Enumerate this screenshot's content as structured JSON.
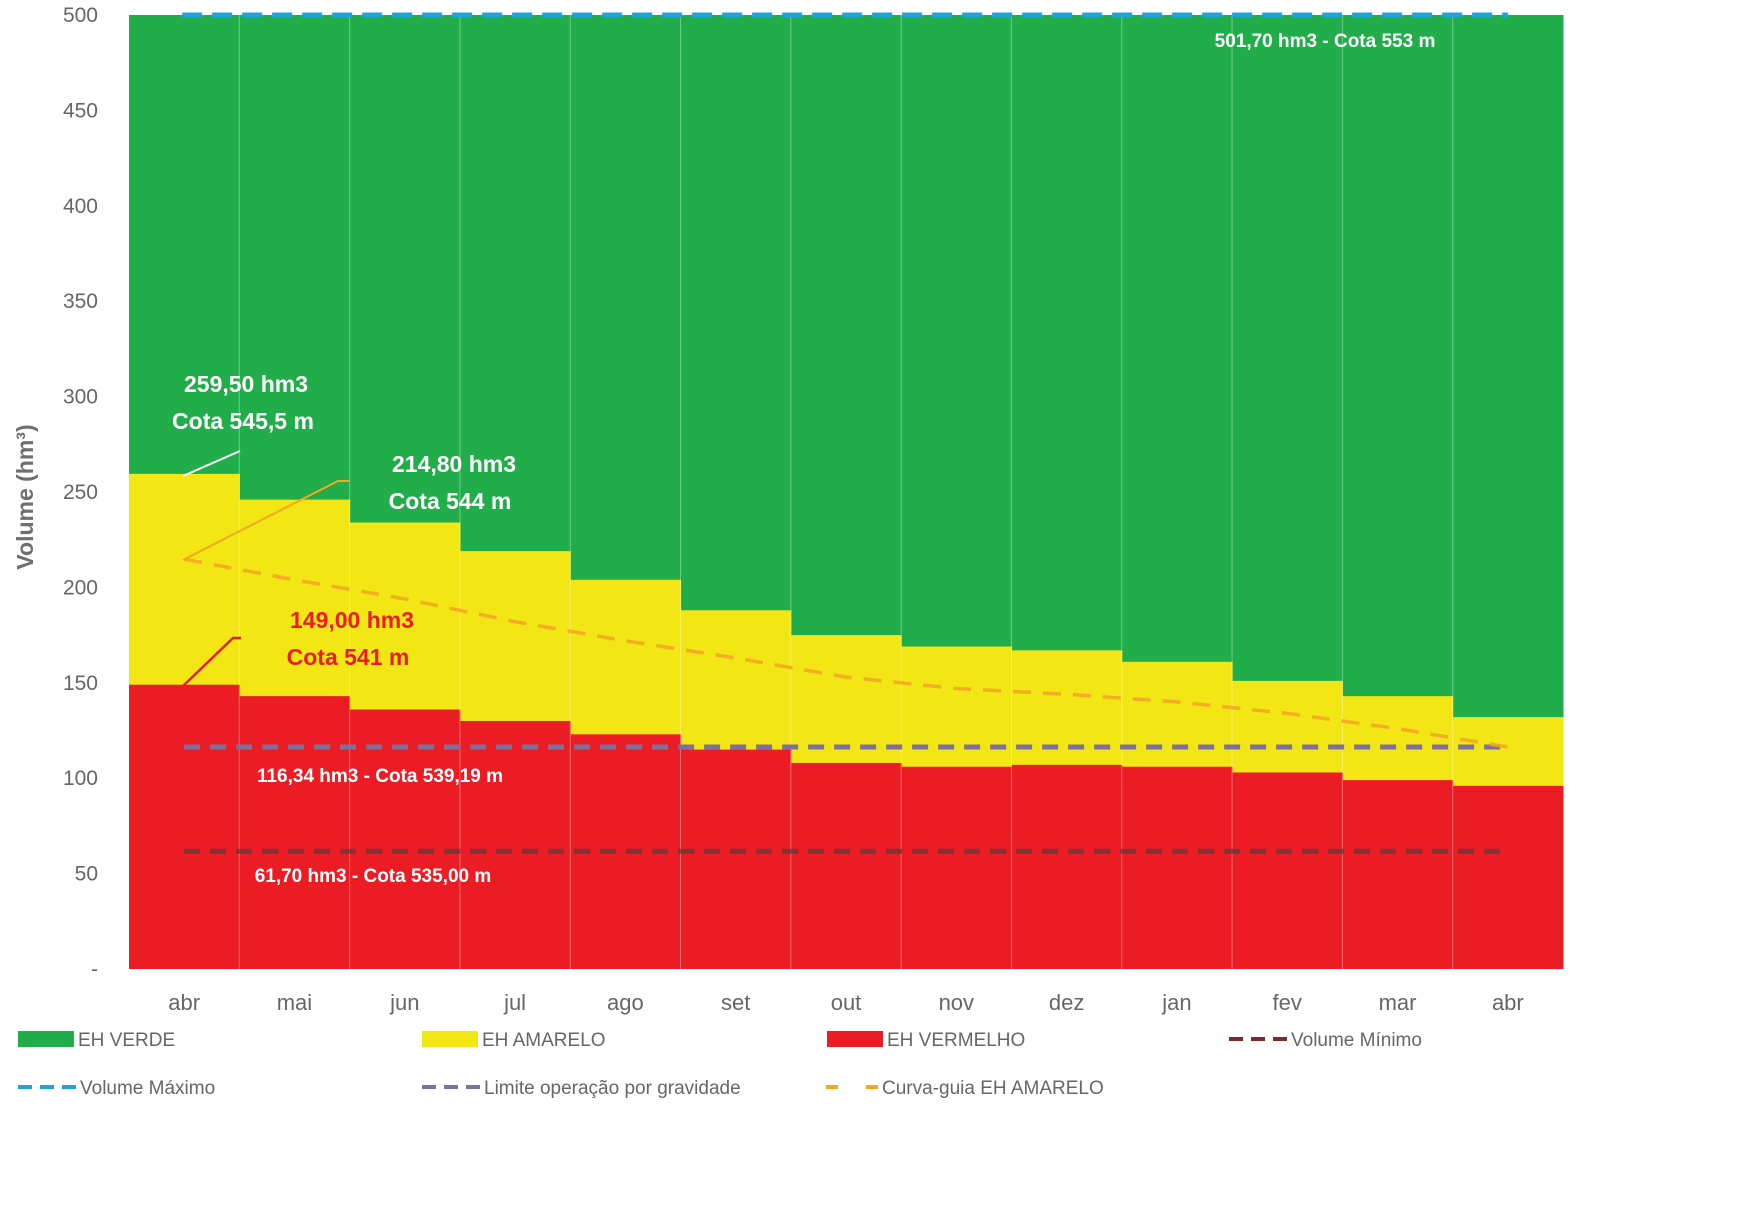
{
  "chart_data": {
    "type": "area",
    "ylabel": "Volume (hm³)",
    "ylim": [
      0,
      500
    ],
    "y_ticks": [
      {
        "value": 0,
        "label": "-"
      },
      {
        "value": 50,
        "label": "50"
      },
      {
        "value": 100,
        "label": "100"
      },
      {
        "value": 150,
        "label": "150"
      },
      {
        "value": 200,
        "label": "200"
      },
      {
        "value": 250,
        "label": "250"
      },
      {
        "value": 300,
        "label": "300"
      },
      {
        "value": 350,
        "label": "350"
      },
      {
        "value": 400,
        "label": "400"
      },
      {
        "value": 450,
        "label": "450"
      },
      {
        "value": 500,
        "label": "500"
      }
    ],
    "categories": [
      "abr",
      "mai",
      "jun",
      "jul",
      "ago",
      "set",
      "out",
      "nov",
      "dez",
      "jan",
      "fev",
      "mar",
      "abr"
    ],
    "series": [
      {
        "name": "EH VERDE",
        "color": "#22ad4b",
        "kind": "stacked-top",
        "upper": 501.7
      },
      {
        "name": "EH AMARELO",
        "color": "#f2e714",
        "kind": "step-upper",
        "values": [
          259.5,
          246,
          234,
          219,
          204,
          188,
          175,
          169,
          167,
          161,
          151,
          143,
          132
        ]
      },
      {
        "name": "EH VERMELHO",
        "color": "#ec1c24",
        "kind": "step-upper",
        "values": [
          149.0,
          143,
          136,
          130,
          123,
          115,
          108,
          106,
          107,
          106,
          103,
          99,
          96
        ]
      },
      {
        "name": "Volume Mínimo",
        "color": "#5a4a4a",
        "kind": "dashed-hline",
        "value": 61.7
      },
      {
        "name": "Volume Máximo",
        "color": "#1fa3dc",
        "kind": "dashed-hline",
        "value": 501.7
      },
      {
        "name": "Limite operação por gravidade",
        "color": "#7f6f9c",
        "kind": "dashed-hline",
        "value": 116.34
      },
      {
        "name": "Curva-guia EH AMARELO",
        "color": "#f5a623",
        "kind": "dashed-line",
        "values": [
          214.8,
          204,
          194,
          182,
          172,
          163,
          153,
          147,
          144,
          140,
          134,
          126,
          116.34
        ]
      }
    ],
    "annotations": [
      {
        "lines": [
          "501,70 hm3 - Cota 553 m"
        ],
        "color": "#ffffff"
      },
      {
        "lines": [
          "259,50  hm3",
          "Cota 545,5 m"
        ],
        "color": "#ffffff"
      },
      {
        "lines": [
          "214,80  hm3",
          "Cota 544 m"
        ],
        "color": "#ffffff"
      },
      {
        "lines": [
          "149,00  hm3",
          "Cota 541 m"
        ],
        "color": "#ec1c24"
      },
      {
        "lines": [
          "116,34 hm3 - Cota 539,19 m"
        ],
        "color": "#ffffff"
      },
      {
        "lines": [
          "61,70  hm3 - Cota 535,00 m"
        ],
        "color": "#ffffff"
      }
    ],
    "legend": [
      {
        "label": "EH VERDE",
        "style": "box",
        "color": "#22ad4b"
      },
      {
        "label": "EH AMARELO",
        "style": "box",
        "color": "#f2e714"
      },
      {
        "label": "EH VERMELHO",
        "style": "box",
        "color": "#ec1c24"
      },
      {
        "label": "Volume Mínimo",
        "style": "dash",
        "color": "#7a2a2a"
      },
      {
        "label": "Volume Máximo",
        "style": "dash",
        "color": "#1fa3dc"
      },
      {
        "label": "Limite operação por gravidade",
        "style": "dash",
        "color": "#7f6f9c"
      },
      {
        "label": "Curva-guia EH AMARELO",
        "style": "dash",
        "color": "#f5a623"
      }
    ],
    "legend_position": "bottom",
    "grid": false
  }
}
